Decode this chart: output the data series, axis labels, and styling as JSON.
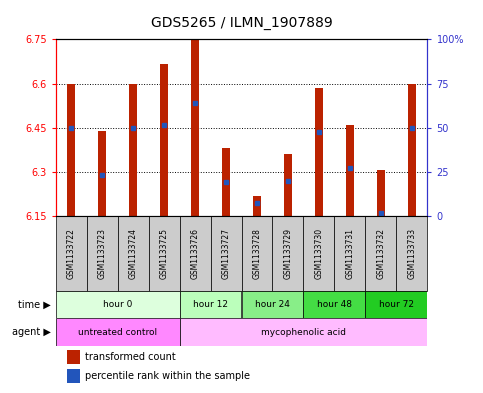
{
  "title": "GDS5265 / ILMN_1907889",
  "samples": [
    "GSM1133722",
    "GSM1133723",
    "GSM1133724",
    "GSM1133725",
    "GSM1133726",
    "GSM1133727",
    "GSM1133728",
    "GSM1133729",
    "GSM1133730",
    "GSM1133731",
    "GSM1133732",
    "GSM1133733"
  ],
  "bar_tops": [
    6.6,
    6.44,
    6.6,
    6.665,
    6.75,
    6.38,
    6.22,
    6.36,
    6.585,
    6.46,
    6.305,
    6.6
  ],
  "bar_bottom": 6.15,
  "percentile_values": [
    6.45,
    6.29,
    6.45,
    6.46,
    6.535,
    6.265,
    6.195,
    6.27,
    6.435,
    6.315,
    6.16,
    6.45
  ],
  "ylim": [
    6.15,
    6.75
  ],
  "yticks_left": [
    6.15,
    6.3,
    6.45,
    6.6,
    6.75
  ],
  "ytick_labels_right": [
    "0",
    "25",
    "50",
    "75",
    "100%"
  ],
  "bar_color": "#bb2200",
  "percentile_color": "#2255bb",
  "time_groups": [
    {
      "label": "hour 0",
      "start": 0,
      "end": 4,
      "color": "#ddffdd"
    },
    {
      "label": "hour 12",
      "start": 4,
      "end": 6,
      "color": "#bbffbb"
    },
    {
      "label": "hour 24",
      "start": 6,
      "end": 8,
      "color": "#88ee88"
    },
    {
      "label": "hour 48",
      "start": 8,
      "end": 10,
      "color": "#44dd44"
    },
    {
      "label": "hour 72",
      "start": 10,
      "end": 12,
      "color": "#22cc22"
    }
  ],
  "agent_groups": [
    {
      "label": "untreated control",
      "start": 0,
      "end": 4,
      "color": "#ff88ff"
    },
    {
      "label": "mycophenolic acid",
      "start": 4,
      "end": 12,
      "color": "#ffbbff"
    }
  ],
  "legend_items": [
    {
      "label": "transformed count",
      "color": "#bb2200"
    },
    {
      "label": "percentile rank within the sample",
      "color": "#2255bb"
    }
  ],
  "bg_color": "#ffffff",
  "sample_bg": "#cccccc",
  "grid_color": "#000000",
  "title_fontsize": 10,
  "tick_fontsize": 7,
  "row_label_fontsize": 8
}
